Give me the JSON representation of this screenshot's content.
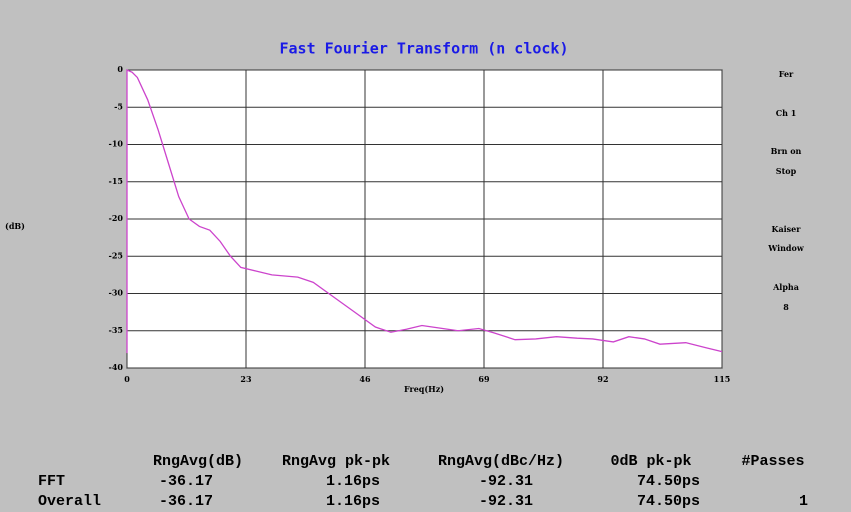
{
  "chart_data": {
    "type": "line",
    "title": "Fast Fourier Transform (n clock)",
    "x_label": "Freq(Hz)",
    "y_label": "(dB)",
    "xlim": [
      0,
      115
    ],
    "xticks": [
      0,
      23,
      46,
      69,
      92,
      115
    ],
    "ylim": [
      -40,
      0
    ],
    "yticks": [
      0,
      -5,
      -10,
      -15,
      -20,
      -25,
      -30,
      -35,
      -40
    ],
    "grid": true,
    "series": [
      {
        "color": "#cc44cc",
        "x": [
          0,
          0,
          1,
          2,
          4,
          6,
          8,
          10,
          12,
          14,
          16,
          18,
          20,
          22,
          25,
          28,
          33,
          36,
          40,
          44,
          48,
          51,
          54,
          57,
          60,
          64,
          68,
          71,
          75,
          79,
          83,
          87,
          90,
          94,
          97,
          100,
          103,
          108,
          112,
          115
        ],
        "values": [
          -38,
          0,
          -0.3,
          -1,
          -4,
          -8,
          -12.5,
          -17,
          -20,
          -21,
          -21.5,
          -23,
          -25,
          -26.5,
          -27,
          -27.5,
          -27.8,
          -28.5,
          -30.5,
          -32.5,
          -34.5,
          -35.2,
          -34.8,
          -34.3,
          -34.6,
          -35,
          -34.7,
          -35.3,
          -36.2,
          -36.1,
          -35.8,
          -36,
          -36.1,
          -36.5,
          -35.8,
          -36.1,
          -36.8,
          -36.6,
          -37.3,
          -37.8
        ]
      }
    ]
  },
  "side_labels": [
    "Fer",
    "Ch 1",
    "Brn on",
    "Stop",
    "Kaiser",
    "Window",
    "Alpha",
    "8"
  ],
  "table": {
    "header": [
      "RngAvg(dB)",
      "RngAvg pk-pk",
      "RngAvg(dBc/Hz)",
      "0dB pk-pk",
      "#Passes"
    ],
    "rows": [
      {
        "label": "FFT",
        "cells": [
          "-36.17",
          "1.16ps",
          "-92.31",
          "74.50ps"
        ]
      },
      {
        "label": "Overall",
        "cells": [
          "-36.17",
          "1.16ps",
          "-92.31",
          "74.50ps",
          "1"
        ]
      }
    ]
  }
}
